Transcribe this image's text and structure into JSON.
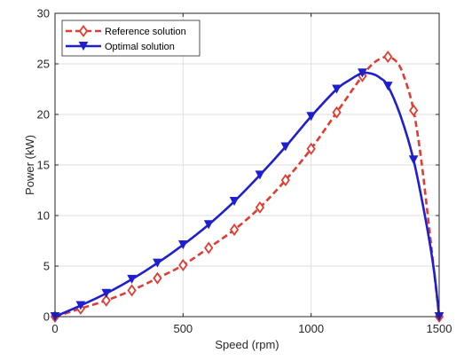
{
  "chart_data": {
    "type": "line",
    "xlabel": "Speed (rpm)",
    "ylabel": "Power (kW)",
    "xlim": [
      0,
      1500
    ],
    "ylim": [
      0,
      30
    ],
    "xticks": [
      0,
      500,
      1000,
      1500
    ],
    "yticks": [
      0,
      5,
      10,
      15,
      20,
      25,
      30
    ],
    "grid": true,
    "legend_position": "top-left",
    "series": [
      {
        "name": "Reference solution",
        "color": "#e03c31",
        "line_style": "dashed",
        "marker": "diamond",
        "x": [
          0,
          100,
          200,
          300,
          400,
          500,
          600,
          700,
          800,
          900,
          1000,
          1100,
          1200,
          1300,
          1400,
          1500
        ],
        "y": [
          0,
          0.8,
          1.6,
          2.6,
          3.8,
          5.1,
          6.8,
          8.6,
          10.8,
          13.5,
          16.6,
          20.2,
          23.8,
          25.7,
          20.4,
          0
        ],
        "curve_x": [
          0,
          100,
          200,
          300,
          400,
          500,
          600,
          700,
          800,
          900,
          1000,
          1100,
          1200,
          1250,
          1300,
          1340,
          1370,
          1400,
          1430,
          1460,
          1480,
          1500
        ],
        "curve_y": [
          0,
          0.8,
          1.6,
          2.6,
          3.8,
          5.1,
          6.8,
          8.6,
          10.8,
          13.5,
          16.6,
          20.2,
          23.8,
          25.2,
          25.7,
          25.0,
          23.2,
          20.4,
          15.5,
          9.0,
          4.5,
          0
        ]
      },
      {
        "name": "Optimal solution",
        "color": "#1f1fcf",
        "line_style": "solid",
        "marker": "triangle-down",
        "x": [
          0,
          100,
          200,
          300,
          400,
          500,
          600,
          700,
          800,
          900,
          1000,
          1100,
          1200,
          1300,
          1400,
          1500
        ],
        "y": [
          0,
          1.1,
          2.3,
          3.7,
          5.3,
          7.1,
          9.1,
          11.4,
          14.0,
          16.8,
          19.8,
          22.5,
          24.1,
          22.8,
          15.5,
          0
        ],
        "curve_x": [
          0,
          100,
          200,
          300,
          400,
          500,
          600,
          700,
          800,
          900,
          1000,
          1100,
          1150,
          1200,
          1240,
          1270,
          1300,
          1350,
          1400,
          1450,
          1480,
          1500
        ],
        "curve_y": [
          0,
          1.1,
          2.3,
          3.7,
          5.3,
          7.1,
          9.1,
          11.4,
          14.0,
          16.8,
          19.8,
          22.5,
          23.4,
          24.1,
          24.0,
          23.6,
          22.8,
          19.8,
          15.5,
          9.2,
          4.5,
          0
        ]
      }
    ]
  }
}
